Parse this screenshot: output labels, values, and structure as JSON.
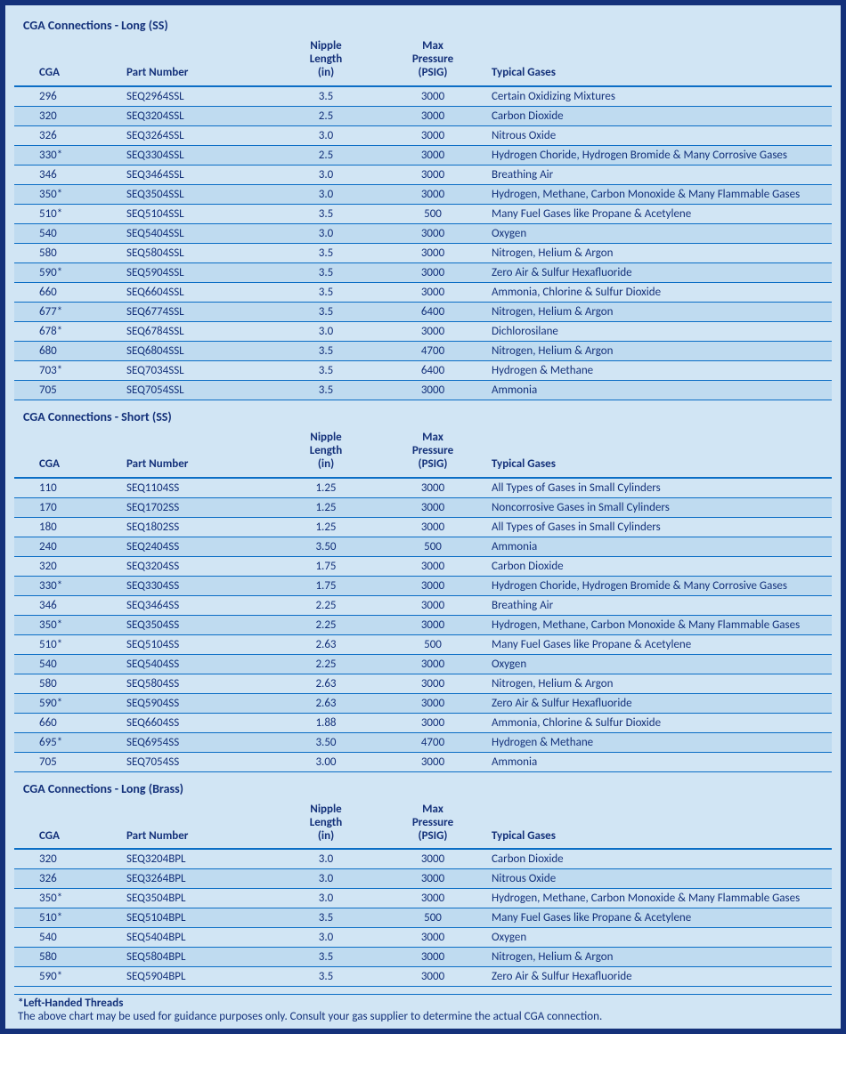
{
  "colors": {
    "page_border": "#14317a",
    "background": "#d1e5f4",
    "row_alt": "#bfdbf0",
    "rule": "#0a6dc5",
    "text": "#14317a"
  },
  "headers": {
    "cga": "CGA",
    "part_number": "Part Number",
    "nipple_length": "Nipple\nLength\n(in)",
    "max_pressure": "Max\nPressure\n(PSIG)",
    "typical_gases": "Typical Gases"
  },
  "tables": [
    {
      "title": "CGA Connections - Long (SS)",
      "rows": [
        {
          "cga": "296",
          "pn": "SEQ2964SSL",
          "nip": "3.5",
          "psi": "3000",
          "gas": "Certain Oxidizing Mixtures"
        },
        {
          "cga": "320",
          "pn": "SEQ3204SSL",
          "nip": "2.5",
          "psi": "3000",
          "gas": "Carbon Dioxide"
        },
        {
          "cga": "326",
          "pn": "SEQ3264SSL",
          "nip": "3.0",
          "psi": "3000",
          "gas": "Nitrous Oxide"
        },
        {
          "cga": "330*",
          "pn": "SEQ3304SSL",
          "nip": "2.5",
          "psi": "3000",
          "gas": "Hydrogen Choride, Hydrogen Bromide & Many Corrosive Gases"
        },
        {
          "cga": "346",
          "pn": "SEQ3464SSL",
          "nip": "3.0",
          "psi": "3000",
          "gas": "Breathing Air"
        },
        {
          "cga": "350*",
          "pn": "SEQ3504SSL",
          "nip": "3.0",
          "psi": "3000",
          "gas": "Hydrogen, Methane, Carbon Monoxide & Many Flammable Gases"
        },
        {
          "cga": "510*",
          "pn": "SEQ5104SSL",
          "nip": "3.5",
          "psi": "500",
          "gas": "Many Fuel Gases like Propane & Acetylene"
        },
        {
          "cga": "540",
          "pn": "SEQ5404SSL",
          "nip": "3.0",
          "psi": "3000",
          "gas": "Oxygen"
        },
        {
          "cga": "580",
          "pn": "SEQ5804SSL",
          "nip": "3.5",
          "psi": "3000",
          "gas": "Nitrogen, Helium & Argon"
        },
        {
          "cga": "590*",
          "pn": "SEQ5904SSL",
          "nip": "3.5",
          "psi": "3000",
          "gas": "Zero Air & Sulfur Hexafluoride"
        },
        {
          "cga": "660",
          "pn": "SEQ6604SSL",
          "nip": "3.5",
          "psi": "3000",
          "gas": "Ammonia, Chlorine & Sulfur Dioxide"
        },
        {
          "cga": "677*",
          "pn": "SEQ6774SSL",
          "nip": "3.5",
          "psi": "6400",
          "gas": "Nitrogen, Helium & Argon"
        },
        {
          "cga": "678*",
          "pn": "SEQ6784SSL",
          "nip": "3.0",
          "psi": "3000",
          "gas": "Dichlorosilane"
        },
        {
          "cga": "680",
          "pn": "SEQ6804SSL",
          "nip": "3.5",
          "psi": "4700",
          "gas": "Nitrogen, Helium & Argon"
        },
        {
          "cga": "703*",
          "pn": "SEQ7034SSL",
          "nip": "3.5",
          "psi": "6400",
          "gas": "Hydrogen & Methane"
        },
        {
          "cga": "705",
          "pn": "SEQ7054SSL",
          "nip": "3.5",
          "psi": "3000",
          "gas": "Ammonia"
        }
      ]
    },
    {
      "title": "CGA Connections - Short (SS)",
      "rows": [
        {
          "cga": "110",
          "pn": "SEQ1104SS",
          "nip": "1.25",
          "psi": "3000",
          "gas": "All Types of Gases in Small Cylinders"
        },
        {
          "cga": "170",
          "pn": "SEQ1702SS",
          "nip": "1.25",
          "psi": "3000",
          "gas": "Noncorrosive Gases in Small Cylinders"
        },
        {
          "cga": "180",
          "pn": "SEQ1802SS",
          "nip": "1.25",
          "psi": "3000",
          "gas": "All Types of Gases in Small Cylinders"
        },
        {
          "cga": "240",
          "pn": "SEQ2404SS",
          "nip": "3.50",
          "psi": "500",
          "gas": "Ammonia"
        },
        {
          "cga": "320",
          "pn": "SEQ3204SS",
          "nip": "1.75",
          "psi": "3000",
          "gas": "Carbon Dioxide"
        },
        {
          "cga": "330*",
          "pn": "SEQ3304SS",
          "nip": "1.75",
          "psi": "3000",
          "gas": "Hydrogen Choride, Hydrogen Bromide & Many Corrosive Gases"
        },
        {
          "cga": "346",
          "pn": "SEQ3464SS",
          "nip": "2.25",
          "psi": "3000",
          "gas": "Breathing Air"
        },
        {
          "cga": "350*",
          "pn": "SEQ3504SS",
          "nip": "2.25",
          "psi": "3000",
          "gas": "Hydrogen, Methane, Carbon Monoxide & Many Flammable Gases"
        },
        {
          "cga": "510*",
          "pn": "SEQ5104SS",
          "nip": "2.63",
          "psi": "500",
          "gas": "Many Fuel Gases like Propane & Acetylene"
        },
        {
          "cga": "540",
          "pn": "SEQ5404SS",
          "nip": "2.25",
          "psi": "3000",
          "gas": "Oxygen"
        },
        {
          "cga": "580",
          "pn": "SEQ5804SS",
          "nip": "2.63",
          "psi": "3000",
          "gas": "Nitrogen, Helium & Argon"
        },
        {
          "cga": "590*",
          "pn": "SEQ5904SS",
          "nip": "2.63",
          "psi": "3000",
          "gas": "Zero Air & Sulfur Hexafluoride"
        },
        {
          "cga": "660",
          "pn": "SEQ6604SS",
          "nip": "1.88",
          "psi": "3000",
          "gas": "Ammonia, Chlorine & Sulfur Dioxide"
        },
        {
          "cga": "695*",
          "pn": "SEQ6954SS",
          "nip": "3.50",
          "psi": "4700",
          "gas": "Hydrogen & Methane"
        },
        {
          "cga": "705",
          "pn": "SEQ7054SS",
          "nip": "3.00",
          "psi": "3000",
          "gas": "Ammonia"
        }
      ]
    },
    {
      "title": "CGA Connections - Long (Brass)",
      "rows": [
        {
          "cga": "320",
          "pn": "SEQ3204BPL",
          "nip": "3.0",
          "psi": "3000",
          "gas": "Carbon Dioxide"
        },
        {
          "cga": "326",
          "pn": "SEQ3264BPL",
          "nip": "3.0",
          "psi": "3000",
          "gas": "Nitrous Oxide"
        },
        {
          "cga": "350*",
          "pn": "SEQ3504BPL",
          "nip": "3.0",
          "psi": "3000",
          "gas": "Hydrogen, Methane, Carbon Monoxide & Many Flammable Gases"
        },
        {
          "cga": "510*",
          "pn": "SEQ5104BPL",
          "nip": "3.5",
          "psi": "500",
          "gas": "Many Fuel Gases like Propane & Acetylene"
        },
        {
          "cga": "540",
          "pn": "SEQ5404BPL",
          "nip": "3.0",
          "psi": "3000",
          "gas": "Oxygen"
        },
        {
          "cga": "580",
          "pn": "SEQ5804BPL",
          "nip": "3.5",
          "psi": "3000",
          "gas": "Nitrogen, Helium & Argon"
        },
        {
          "cga": "590*",
          "pn": "SEQ5904BPL",
          "nip": "3.5",
          "psi": "3000",
          "gas": "Zero Air & Sulfur Hexafluoride"
        }
      ]
    }
  ],
  "footnote": {
    "bold": "*Left-Handed Threads",
    "text": "The above chart may be used for guidance purposes only. Consult your gas supplier to determine the actual CGA connection."
  }
}
